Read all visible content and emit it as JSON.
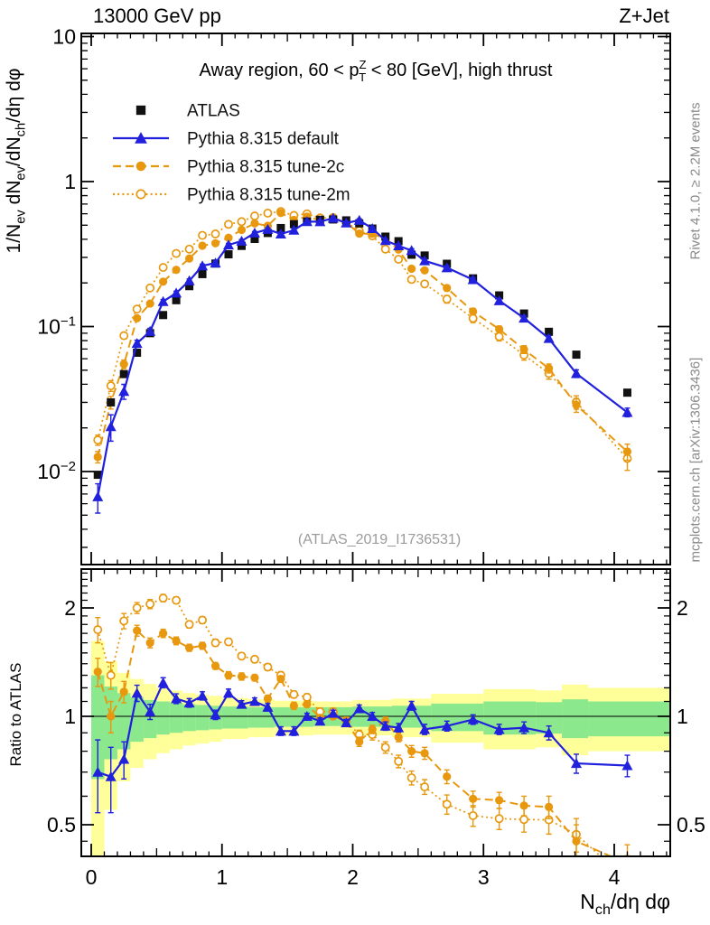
{
  "page": {
    "header_left": "13000 GeV pp",
    "header_right": "Z+Jet"
  },
  "chart_data": {
    "type": "line",
    "title": "Away region, 60 < pTZ < 80 [GeV], high thrust",
    "title_parts": [
      {
        "t": "Away region, 60 < p"
      },
      {
        "st": {
          "sup": "Z",
          "sub": "T"
        }
      },
      {
        "t": " < 80 [GeV], high thrust"
      }
    ],
    "watermark": "(ATLAS_2019_I1736531)",
    "ylabel": "1/N_ev dN_ev/dN_ch/dη dφ",
    "ylabel_parts": [
      {
        "t": "1/N"
      },
      {
        "t": "ev",
        "m": "sub"
      },
      {
        "t": " dN"
      },
      {
        "t": "ev",
        "m": "sub"
      },
      {
        "t": "/dN"
      },
      {
        "t": "ch",
        "m": "sub"
      },
      {
        "t": "/dη dφ"
      }
    ],
    "xlabel": "N_ch/dη dφ",
    "xlabel_parts": [
      {
        "t": "N"
      },
      {
        "t": "ch",
        "m": "sub"
      },
      {
        "t": "/dη dφ"
      }
    ],
    "ratio_ylabel": "Ratio to ATLAS",
    "credit_right_top": "Rivet 4.1.0, ≥ 2.2M events",
    "credit_right_bottom": "mcplots.cern.ch [arXiv:1306.3436]",
    "legend_position": "top-left-inside",
    "grid": false,
    "colors": {
      "atlas": "#111111",
      "pythia_blue": "#2020dd",
      "pythia_orange": "#e8980f",
      "band_yellow": "#ffff99",
      "band_green": "#8ce88c",
      "frame": "#000000"
    },
    "axes": {
      "xlim": [
        -0.08,
        4.43
      ],
      "ylim_main": [
        0.0023,
        10.5
      ],
      "ylim_ratio": [
        0.41,
        2.56
      ],
      "log_y": true,
      "x_ticks": [
        0,
        1,
        2,
        3,
        4
      ],
      "x_minor_step": 0.1,
      "y_main_ticks": [
        {
          "value": 10,
          "label": "10"
        },
        {
          "value": 1,
          "label": "1"
        },
        {
          "value": 0.1,
          "label": "10",
          "exp": "−1"
        },
        {
          "value": 0.01,
          "label": "10",
          "exp": "−2"
        }
      ],
      "y_ratio_ticks": [
        {
          "value": 2,
          "label": "2"
        },
        {
          "value": 1,
          "label": "1"
        },
        {
          "value": 0.5,
          "label": "0.5"
        }
      ],
      "ratio_reference": 1
    },
    "x": [
      0.05,
      0.15,
      0.25,
      0.35,
      0.45,
      0.55,
      0.65,
      0.75,
      0.85,
      0.95,
      1.05,
      1.15,
      1.25,
      1.35,
      1.45,
      1.55,
      1.65,
      1.75,
      1.85,
      1.95,
      2.05,
      2.15,
      2.25,
      2.35,
      2.45,
      2.55,
      2.72,
      2.92,
      3.12,
      3.31,
      3.5,
      3.71,
      4.1
    ],
    "series": [
      {
        "key": "atlas",
        "label": "ATLAS",
        "marker": "square-filled",
        "color": "#111111",
        "line": "none",
        "values": [
          0.0095,
          0.03,
          0.047,
          0.066,
          0.09,
          0.12,
          0.152,
          0.19,
          0.23,
          0.272,
          0.315,
          0.36,
          0.402,
          0.442,
          0.478,
          0.508,
          0.53,
          0.545,
          0.548,
          0.54,
          0.515,
          0.474,
          0.417,
          0.388,
          0.313,
          0.309,
          0.271,
          0.215,
          0.164,
          0.123,
          0.092,
          0.064,
          0.035
        ]
      },
      {
        "key": "pythia-default",
        "label": "Pythia 8.315 default",
        "marker": "triangle-filled",
        "color": "#2020dd",
        "line": "solid",
        "values": [
          0.0067,
          0.0204,
          0.0357,
          0.0766,
          0.0927,
          0.1488,
          0.1702,
          0.2071,
          0.2622,
          0.2747,
          0.3654,
          0.3888,
          0.4422,
          0.4685,
          0.435,
          0.4623,
          0.53,
          0.5287,
          0.559,
          0.5184,
          0.5408,
          0.474,
          0.392,
          0.3608,
          0.3349,
          0.2843,
          0.2547,
          0.2107,
          0.1509,
          0.1144,
          0.0828,
          0.0474,
          0.0256
        ],
        "ratio": [
          0.7,
          0.68,
          0.76,
          1.16,
          1.03,
          1.24,
          1.12,
          1.09,
          1.14,
          1.01,
          1.16,
          1.08,
          1.1,
          1.06,
          0.91,
          0.91,
          1.0,
          0.97,
          1.02,
          0.96,
          1.05,
          1.0,
          0.94,
          0.93,
          1.07,
          0.92,
          0.94,
          0.98,
          0.92,
          0.93,
          0.9,
          0.74,
          0.73
        ],
        "ratio_err": [
          0.16,
          0.14,
          0.09,
          0.06,
          0.05,
          0.04,
          0.035,
          0.03,
          0.03,
          0.03,
          0.03,
          0.025,
          0.025,
          0.025,
          0.025,
          0.025,
          0.02,
          0.02,
          0.02,
          0.02,
          0.025,
          0.025,
          0.025,
          0.025,
          0.03,
          0.03,
          0.03,
          0.03,
          0.03,
          0.035,
          0.04,
          0.045,
          0.05
        ]
      },
      {
        "key": "pythia-tune-2c",
        "label": "Pythia 8.315 tune-2c",
        "marker": "circle-filled",
        "color": "#e8980f",
        "line": "dashed",
        "values": [
          0.0126,
          0.03,
          0.055,
          0.1142,
          0.144,
          0.204,
          0.2462,
          0.2945,
          0.3611,
          0.3754,
          0.4095,
          0.4644,
          0.5146,
          0.495,
          0.6071,
          0.5436,
          0.5724,
          0.5396,
          0.548,
          0.5238,
          0.4378,
          0.4361,
          0.4045,
          0.3395,
          0.2504,
          0.2441,
          0.1843,
          0.1269,
          0.0959,
          0.0695,
          0.0515,
          0.0288,
          0.0137
        ],
        "ratio": [
          1.33,
          1.0,
          1.17,
          1.73,
          1.6,
          1.7,
          1.62,
          1.55,
          1.57,
          1.38,
          1.3,
          1.29,
          1.28,
          1.12,
          1.27,
          1.07,
          1.08,
          0.99,
          1.0,
          0.97,
          0.85,
          0.92,
          0.97,
          0.875,
          0.8,
          0.79,
          0.68,
          0.59,
          0.585,
          0.565,
          0.56,
          0.45,
          0.39
        ],
        "ratio_err": [
          0.12,
          0.1,
          0.08,
          0.06,
          0.05,
          0.045,
          0.04,
          0.035,
          0.035,
          0.03,
          0.03,
          0.03,
          0.025,
          0.025,
          0.025,
          0.025,
          0.02,
          0.02,
          0.02,
          0.02,
          0.025,
          0.025,
          0.025,
          0.025,
          0.03,
          0.03,
          0.03,
          0.03,
          0.03,
          0.035,
          0.04,
          0.05,
          0.05
        ]
      },
      {
        "key": "pythia-tune-2m",
        "label": "Pythia 8.315 tune-2m",
        "marker": "circle-open",
        "color": "#e8980f",
        "line": "dotted",
        "values": [
          0.0165,
          0.039,
          0.0865,
          0.132,
          0.1845,
          0.2556,
          0.3192,
          0.342,
          0.4255,
          0.4352,
          0.5072,
          0.5292,
          0.5789,
          0.6055,
          0.6214,
          0.5842,
          0.5989,
          0.5614,
          0.5644,
          0.5238,
          0.4584,
          0.4219,
          0.3419,
          0.291,
          0.2113,
          0.1968,
          0.1545,
          0.114,
          0.0853,
          0.0636,
          0.0475,
          0.0301,
          0.0123
        ],
        "ratio": [
          1.74,
          1.3,
          1.84,
          2.0,
          2.05,
          2.13,
          2.1,
          1.8,
          1.85,
          1.6,
          1.61,
          1.47,
          1.44,
          1.37,
          1.3,
          1.15,
          1.13,
          1.03,
          1.03,
          0.97,
          0.89,
          0.89,
          0.82,
          0.75,
          0.675,
          0.637,
          0.57,
          0.53,
          0.52,
          0.517,
          0.516,
          0.47,
          0.35
        ],
        "ratio_err": [
          0.14,
          0.11,
          0.09,
          0.07,
          0.06,
          0.05,
          0.045,
          0.04,
          0.04,
          0.035,
          0.035,
          0.03,
          0.03,
          0.03,
          0.03,
          0.025,
          0.025,
          0.025,
          0.025,
          0.025,
          0.025,
          0.03,
          0.03,
          0.03,
          0.03,
          0.03,
          0.035,
          0.035,
          0.035,
          0.04,
          0.045,
          0.05,
          0.06
        ]
      }
    ],
    "uncertainty_bands": [
      {
        "x0": 0.0,
        "x1": 0.1,
        "yellow": [
          0.4,
          1.62
        ],
        "green": [
          0.67,
          1.3
        ]
      },
      {
        "x0": 0.1,
        "x1": 0.2,
        "yellow": [
          0.55,
          1.42
        ],
        "green": [
          0.76,
          1.21
        ]
      },
      {
        "x0": 0.2,
        "x1": 0.3,
        "yellow": [
          0.66,
          1.32
        ],
        "green": [
          0.81,
          1.16
        ]
      },
      {
        "x0": 0.3,
        "x1": 0.4,
        "yellow": [
          0.72,
          1.27
        ],
        "green": [
          0.85,
          1.13
        ]
      },
      {
        "x0": 0.4,
        "x1": 0.5,
        "yellow": [
          0.76,
          1.23
        ],
        "green": [
          0.87,
          1.11
        ]
      },
      {
        "x0": 0.5,
        "x1": 0.6,
        "yellow": [
          0.79,
          1.2
        ],
        "green": [
          0.89,
          1.1
        ]
      },
      {
        "x0": 0.6,
        "x1": 0.7,
        "yellow": [
          0.81,
          1.18
        ],
        "green": [
          0.9,
          1.09
        ]
      },
      {
        "x0": 0.7,
        "x1": 0.8,
        "yellow": [
          0.83,
          1.16
        ],
        "green": [
          0.91,
          1.08
        ]
      },
      {
        "x0": 0.8,
        "x1": 0.9,
        "yellow": [
          0.84,
          1.15
        ],
        "green": [
          0.915,
          1.075
        ]
      },
      {
        "x0": 0.9,
        "x1": 1.0,
        "yellow": [
          0.85,
          1.14
        ],
        "green": [
          0.92,
          1.07
        ]
      },
      {
        "x0": 1.0,
        "x1": 1.2,
        "yellow": [
          0.865,
          1.125
        ],
        "green": [
          0.925,
          1.065
        ]
      },
      {
        "x0": 1.2,
        "x1": 1.4,
        "yellow": [
          0.875,
          1.115
        ],
        "green": [
          0.93,
          1.06
        ]
      },
      {
        "x0": 1.4,
        "x1": 1.7,
        "yellow": [
          0.885,
          1.105
        ],
        "green": [
          0.935,
          1.06
        ]
      },
      {
        "x0": 1.7,
        "x1": 2.0,
        "yellow": [
          0.89,
          1.1
        ],
        "green": [
          0.94,
          1.06
        ]
      },
      {
        "x0": 2.0,
        "x1": 2.3,
        "yellow": [
          0.885,
          1.11
        ],
        "green": [
          0.935,
          1.065
        ]
      },
      {
        "x0": 2.3,
        "x1": 2.6,
        "yellow": [
          0.875,
          1.12
        ],
        "green": [
          0.93,
          1.07
        ]
      },
      {
        "x0": 2.6,
        "x1": 3.0,
        "yellow": [
          0.845,
          1.155
        ],
        "green": [
          0.91,
          1.085
        ]
      },
      {
        "x0": 3.0,
        "x1": 3.4,
        "yellow": [
          0.81,
          1.19
        ],
        "green": [
          0.89,
          1.1
        ]
      },
      {
        "x0": 3.4,
        "x1": 3.6,
        "yellow": [
          0.82,
          1.18
        ],
        "green": [
          0.895,
          1.095
        ]
      },
      {
        "x0": 3.6,
        "x1": 3.8,
        "yellow": [
          0.78,
          1.225
        ],
        "green": [
          0.87,
          1.115
        ]
      },
      {
        "x0": 3.8,
        "x1": 4.43,
        "yellow": [
          0.8,
          1.2
        ],
        "green": [
          0.88,
          1.1
        ]
      }
    ]
  }
}
